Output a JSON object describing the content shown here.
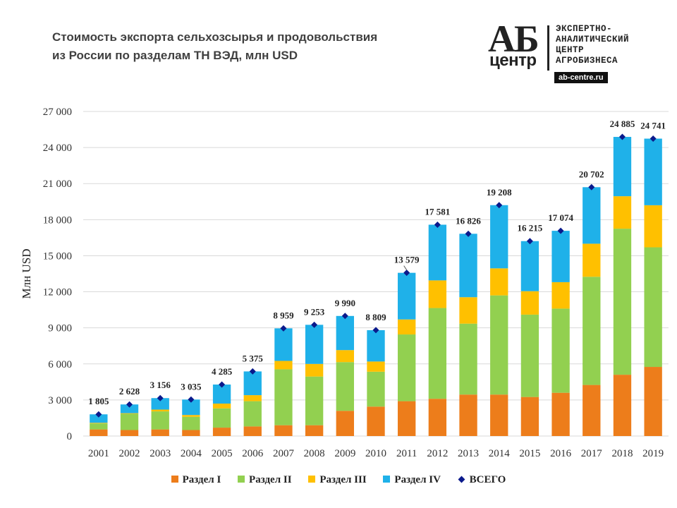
{
  "header": {
    "title_line1": "Стоимость экспорта сельхозсырья и продовольствия",
    "title_line2": "из России по разделам ТН ВЭД, млн USD"
  },
  "logo": {
    "mark_top": "АБ",
    "mark_bottom": "центр",
    "text_line1": "ЭКСПЕРТНО-",
    "text_line2": "АНАЛИТИЧЕСКИЙ",
    "text_line3": "ЦЕНТР",
    "text_line4": "АГРОБИЗНЕСА",
    "url": "ab-centre.ru"
  },
  "colors": {
    "s1": "#ED7D1B",
    "s2": "#92D050",
    "s3": "#FFC000",
    "s4": "#1FB1E9",
    "total": "#0A1A8C",
    "grid": "#D9D9D9"
  },
  "chart_data": {
    "type": "bar",
    "stacked": true,
    "ylabel": "Млн USD",
    "ylim": [
      0,
      27000
    ],
    "yticks": [
      0,
      3000,
      6000,
      9000,
      12000,
      15000,
      18000,
      21000,
      24000,
      27000
    ],
    "ytick_labels": [
      "0",
      "3 000",
      "6 000",
      "9 000",
      "12 000",
      "15 000",
      "18 000",
      "21 000",
      "24 000",
      "27 000"
    ],
    "categories": [
      "2001",
      "2002",
      "2003",
      "2004",
      "2005",
      "2006",
      "2007",
      "2008",
      "2009",
      "2010",
      "2011",
      "2012",
      "2013",
      "2014",
      "2015",
      "2016",
      "2017",
      "2018",
      "2019"
    ],
    "series": [
      {
        "name": "Раздел I",
        "color_key": "s1",
        "values": [
          550,
          500,
          550,
          500,
          700,
          800,
          900,
          900,
          2100,
          2450,
          2900,
          3100,
          3450,
          3450,
          3250,
          3600,
          4250,
          5100,
          5750
        ]
      },
      {
        "name": "Раздел II",
        "color_key": "s2",
        "values": [
          500,
          1350,
          1500,
          1100,
          1600,
          2100,
          4650,
          4050,
          4050,
          2900,
          5550,
          7550,
          5900,
          8250,
          6850,
          7000,
          9000,
          12150,
          9950
        ]
      },
      {
        "name": "Раздел III",
        "color_key": "s3",
        "values": [
          50,
          50,
          150,
          150,
          400,
          500,
          700,
          1050,
          1000,
          850,
          1250,
          2300,
          2200,
          2250,
          1950,
          2200,
          2750,
          2700,
          3500
        ]
      },
      {
        "name": "Раздел IV",
        "color_key": "s4",
        "values": [
          705,
          728,
          956,
          1285,
          1585,
          1975,
          2709,
          3253,
          2840,
          2609,
          3879,
          4631,
          5276,
          5258,
          4165,
          4274,
          4702,
          4935,
          5541
        ]
      }
    ],
    "totals": {
      "name": "ВСЕГО",
      "values": [
        1805,
        2628,
        3156,
        3035,
        4285,
        5375,
        8959,
        9253,
        9990,
        8809,
        13579,
        17581,
        16826,
        19208,
        16215,
        17074,
        20702,
        24885,
        24741
      ],
      "labels": [
        "1 805",
        "2 628",
        "3 156",
        "3 035",
        "4 285",
        "5 375",
        "8 959",
        "9 253",
        "9 990",
        "8 809",
        "13 579",
        "17 581",
        "16 826",
        "19 208",
        "16 215",
        "17 074",
        "20 702",
        "24 885",
        "24 741"
      ]
    },
    "legend": [
      "Раздел I",
      "Раздел II",
      "Раздел III",
      "Раздел IV",
      "ВСЕГО"
    ]
  }
}
